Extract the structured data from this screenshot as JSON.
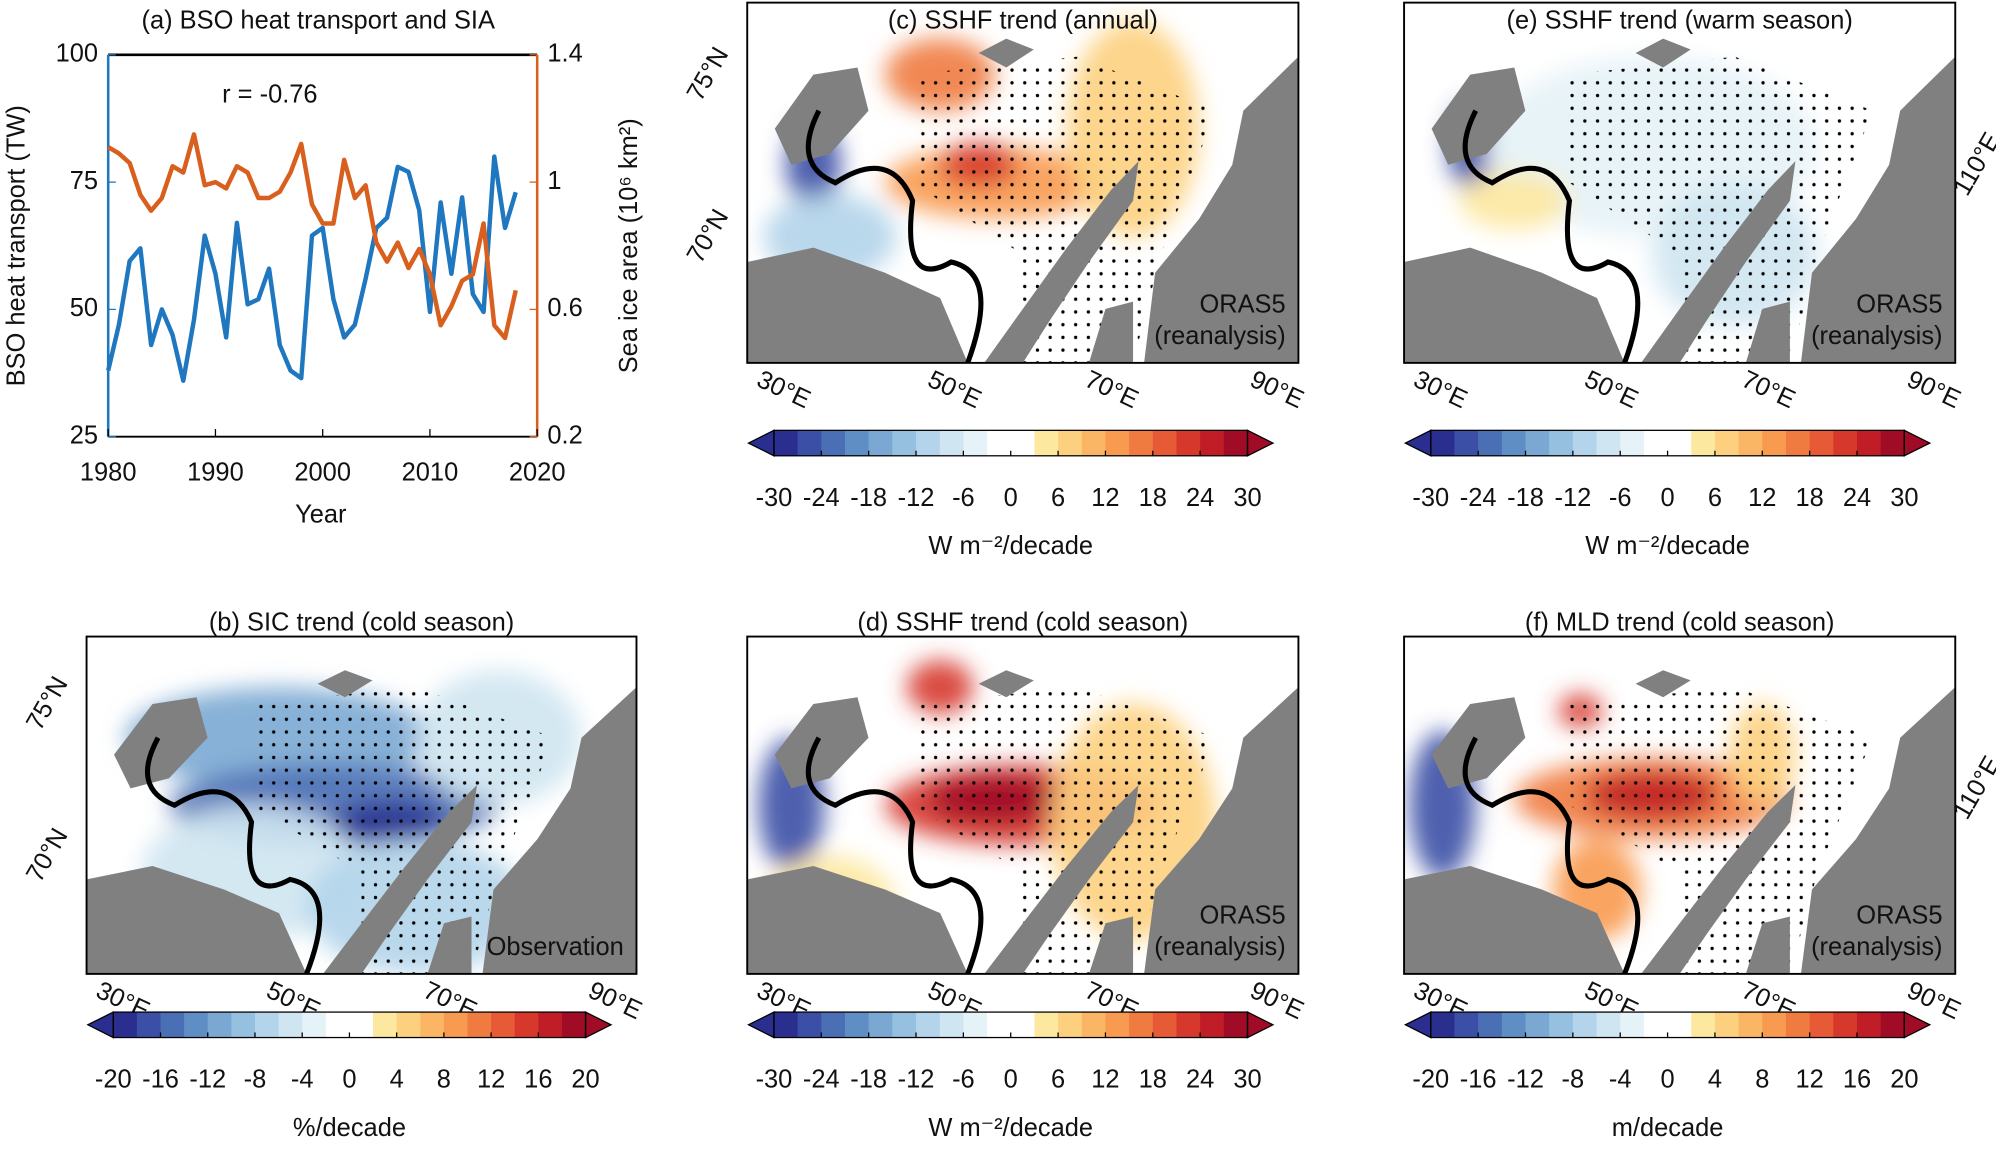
{
  "colormap": [
    "#2a2f8f",
    "#3a4fa5",
    "#4b6fb5",
    "#5f8ec4",
    "#7aa8d3",
    "#96c0e0",
    "#b3d4ea",
    "#cfe5f1",
    "#e5f2f7",
    "#ffffff",
    "#ffffff",
    "#fde8a0",
    "#fdd080",
    "#fbb665",
    "#f89a50",
    "#f07b41",
    "#e65a35",
    "#d6392c",
    "#c01d27",
    "#a00b26"
  ],
  "chart_data": [
    {
      "type": "line",
      "title": "(a) BSO heat transport and SIA",
      "annotation": "r = -0.76",
      "xlabel": "Year",
      "ylabel": "BSO heat transport (TW)",
      "y2label": "Sea ice area (10⁶ km²)",
      "x": [
        1980,
        1981,
        1982,
        1983,
        1984,
        1985,
        1986,
        1987,
        1988,
        1989,
        1990,
        1991,
        1992,
        1993,
        1994,
        1995,
        1996,
        1997,
        1998,
        1999,
        2000,
        2001,
        2002,
        2003,
        2004,
        2005,
        2006,
        2007,
        2008,
        2009,
        2010,
        2011,
        2012,
        2013,
        2014,
        2015,
        2016,
        2017,
        2018
      ],
      "xlim": [
        1980,
        2020
      ],
      "xticks": [
        1980,
        1990,
        2000,
        2010,
        2020
      ],
      "ylim": [
        25,
        100
      ],
      "yticks": [
        25,
        50,
        75,
        100
      ],
      "y2lim": [
        0.2,
        1.4
      ],
      "y2ticks": [
        0.2,
        0.6,
        1,
        1.4
      ],
      "series": [
        {
          "color": "#1f77c0",
          "values": [
            38,
            47,
            59.5,
            62,
            43,
            50,
            45,
            36,
            48,
            64.5,
            57,
            44.5,
            67,
            51,
            52,
            58,
            43,
            38,
            36.5,
            64.5,
            66,
            52,
            44.5,
            47,
            56,
            66,
            68,
            78,
            77,
            69.5,
            49.5,
            71,
            57,
            72,
            53,
            49.5,
            80,
            66,
            73
          ]
        },
        {
          "color": "#d95f1e",
          "axis": "y2",
          "values": [
            1.11,
            1.09,
            1.06,
            0.96,
            0.91,
            0.95,
            1.05,
            1.03,
            1.15,
            0.99,
            1.0,
            0.98,
            1.05,
            1.03,
            0.95,
            0.95,
            0.97,
            1.03,
            1.12,
            0.93,
            0.87,
            0.87,
            1.07,
            0.95,
            0.99,
            0.81,
            0.75,
            0.81,
            0.73,
            0.79,
            0.71,
            0.55,
            0.61,
            0.69,
            0.71,
            0.87,
            0.55,
            0.51,
            0.66
          ]
        }
      ]
    },
    {
      "type": "map",
      "title": "(b) SIC trend (cold season)",
      "lat_labels": [
        "75°N",
        "70°N"
      ],
      "lon_labels": [
        "30°E",
        "50°E",
        "70°E",
        "90°E"
      ],
      "annotations": [
        "Observation"
      ],
      "colorbar": {
        "lim": [
          -20,
          20
        ],
        "ticks": [
          -20,
          -16,
          -12,
          -8,
          -4,
          0,
          4,
          8,
          12,
          16,
          20
        ],
        "label": "%/decade"
      }
    },
    {
      "type": "map",
      "title": "(c) SSHF trend (annual)",
      "lat_labels": [
        "75°N",
        "70°N"
      ],
      "lon_labels": [
        "30°E",
        "50°E",
        "70°E",
        "90°E"
      ],
      "annotations": [
        "ORAS5",
        "(reanalysis)"
      ],
      "colorbar": {
        "lim": [
          -30,
          30
        ],
        "ticks": [
          -30,
          -24,
          -18,
          -12,
          -6,
          0,
          6,
          12,
          18,
          24,
          30
        ],
        "label": "W m⁻²/decade"
      }
    },
    {
      "type": "map",
      "title": "(d) SSHF trend (cold season)",
      "lon_labels": [
        "30°E",
        "50°E",
        "70°E",
        "90°E"
      ],
      "annotations": [
        "ORAS5",
        "(reanalysis)"
      ],
      "colorbar": {
        "lim": [
          -30,
          30
        ],
        "ticks": [
          -30,
          -24,
          -18,
          -12,
          -6,
          0,
          6,
          12,
          18,
          24,
          30
        ],
        "label": "W m⁻²/decade"
      }
    },
    {
      "type": "map",
      "title": "(e) SSHF trend (warm season)",
      "lon_labels": [
        "30°E",
        "50°E",
        "70°E",
        "90°E"
      ],
      "right_labels": [
        "110°E"
      ],
      "annotations": [
        "ORAS5",
        "(reanalysis)"
      ],
      "colorbar": {
        "lim": [
          -30,
          30
        ],
        "ticks": [
          -30,
          -24,
          -18,
          -12,
          -6,
          0,
          6,
          12,
          18,
          24,
          30
        ],
        "label": "W m⁻²/decade"
      }
    },
    {
      "type": "map",
      "title": "(f) MLD trend (cold season)",
      "lon_labels": [
        "30°E",
        "50°E",
        "70°E",
        "90°E"
      ],
      "right_labels": [
        "110°E"
      ],
      "annotations": [
        "ORAS5",
        "(reanalysis)"
      ],
      "colorbar": {
        "lim": [
          -20,
          20
        ],
        "ticks": [
          -20,
          -16,
          -12,
          -8,
          -4,
          0,
          4,
          8,
          12,
          16,
          20
        ],
        "label": "m/decade"
      }
    }
  ]
}
